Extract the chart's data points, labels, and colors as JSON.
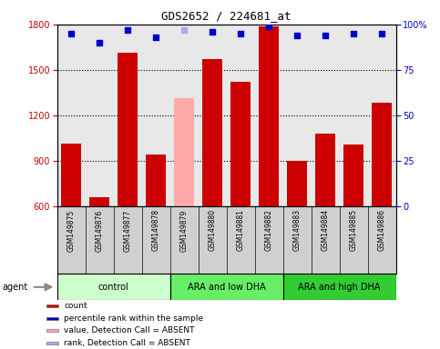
{
  "title": "GDS2652 / 224681_at",
  "samples": [
    "GSM149875",
    "GSM149876",
    "GSM149877",
    "GSM149878",
    "GSM149879",
    "GSM149880",
    "GSM149881",
    "GSM149882",
    "GSM149883",
    "GSM149884",
    "GSM149885",
    "GSM149886"
  ],
  "counts": [
    1010,
    660,
    1610,
    940,
    1310,
    1570,
    1420,
    1790,
    895,
    1080,
    1005,
    1280
  ],
  "absent": [
    false,
    false,
    false,
    false,
    true,
    false,
    false,
    false,
    false,
    false,
    false,
    false
  ],
  "percentile_ranks": [
    95,
    90,
    97,
    93,
    97,
    96,
    95,
    99,
    94,
    94,
    95,
    95
  ],
  "rank_absent": [
    false,
    false,
    false,
    false,
    true,
    false,
    false,
    false,
    false,
    false,
    false,
    false
  ],
  "groups": [
    {
      "label": "control",
      "start": 0,
      "end": 3,
      "color": "#ccffcc"
    },
    {
      "label": "ARA and low DHA",
      "start": 4,
      "end": 7,
      "color": "#66ee66"
    },
    {
      "label": "ARA and high DHA",
      "start": 8,
      "end": 11,
      "color": "#33cc33"
    }
  ],
  "bar_color_normal": "#cc0000",
  "bar_color_absent": "#ffaaaa",
  "dot_color_normal": "#0000cc",
  "dot_color_absent": "#aaaaee",
  "ylim_left": [
    600,
    1800
  ],
  "ylim_right": [
    0,
    100
  ],
  "yticks_left": [
    600,
    900,
    1200,
    1500,
    1800
  ],
  "yticks_right": [
    0,
    25,
    50,
    75,
    100
  ],
  "grid_lines": [
    900,
    1200,
    1500
  ],
  "ylabel_left_color": "#cc0000",
  "ylabel_right_color": "#0000cc",
  "agent_label": "agent",
  "background_color": "#ffffff",
  "plot_area_color": "#e8e8e8",
  "sample_box_color": "#d0d0d0",
  "legend": [
    {
      "label": "count",
      "color": "#cc0000"
    },
    {
      "label": "percentile rank within the sample",
      "color": "#0000cc"
    },
    {
      "label": "value, Detection Call = ABSENT",
      "color": "#ffaaaa"
    },
    {
      "label": "rank, Detection Call = ABSENT",
      "color": "#aaaaee"
    }
  ]
}
